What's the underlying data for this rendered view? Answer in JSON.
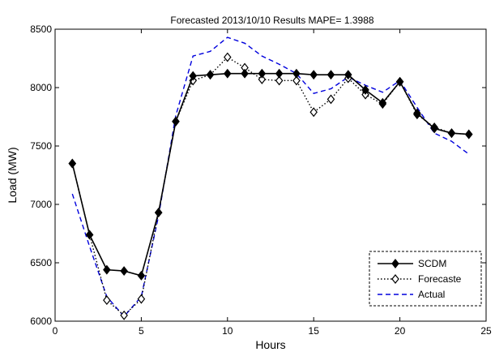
{
  "chart_data": {
    "type": "line",
    "title": "Forecasted 2013/10/10 Results MAPE= 1.3988",
    "xlabel": "Hours",
    "ylabel": "Load (MW)",
    "xlim": [
      0,
      25
    ],
    "ylim": [
      6000,
      8500
    ],
    "xticks": [
      0,
      5,
      10,
      15,
      20,
      25
    ],
    "yticks": [
      6000,
      6500,
      7000,
      7500,
      8000,
      8500
    ],
    "grid": false,
    "legend_position": "bottom-right",
    "x": [
      1,
      2,
      3,
      4,
      5,
      6,
      7,
      8,
      9,
      10,
      11,
      12,
      13,
      14,
      15,
      16,
      17,
      18,
      19,
      20,
      21,
      22,
      23,
      24
    ],
    "series": [
      {
        "name": "SCDM",
        "color": "#000000",
        "line": "solid",
        "marker": "filled-diamond",
        "values": [
          7350,
          6740,
          6440,
          6430,
          6390,
          6930,
          7710,
          8100,
          8110,
          8120,
          8120,
          8120,
          8120,
          8120,
          8110,
          8110,
          8110,
          7980,
          7870,
          8050,
          7780,
          7650,
          7610,
          7600
        ]
      },
      {
        "name": "Forecaste",
        "color": "#000000",
        "line": "dotted",
        "marker": "open-diamond",
        "values": [
          7350,
          6740,
          6180,
          6050,
          6190,
          6930,
          7710,
          8060,
          8110,
          8260,
          8170,
          8070,
          8060,
          8060,
          7790,
          7900,
          8080,
          7940,
          7860,
          8050,
          7770,
          7660,
          7610,
          7600
        ]
      },
      {
        "name": "Actual",
        "color": "#0000dd",
        "line": "dashed",
        "marker": "none",
        "values": [
          7090,
          6640,
          6210,
          6040,
          6210,
          6900,
          7760,
          8270,
          8310,
          8430,
          8380,
          8270,
          8200,
          8120,
          7950,
          7990,
          8090,
          8020,
          7960,
          8060,
          7830,
          7610,
          7540,
          7430
        ]
      }
    ]
  }
}
